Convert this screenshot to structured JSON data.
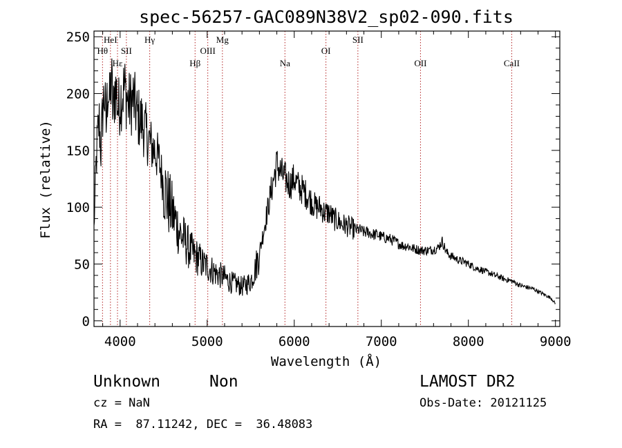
{
  "chart_data": {
    "type": "line",
    "title": "spec-56257-GAC089N38V2_sp02-090.fits",
    "xlabel": "Wavelength (Å)",
    "ylabel": "Flux (relative)",
    "xlim": [
      3700,
      9050
    ],
    "ylim": [
      -5,
      255
    ],
    "x_ticks": [
      4000,
      5000,
      6000,
      7000,
      8000,
      9000
    ],
    "y_ticks": [
      0,
      50,
      100,
      150,
      200,
      250
    ],
    "grid": false,
    "series": [
      {
        "x": [
          3700,
          3720,
          3740,
          3760,
          3780,
          3800,
          3820,
          3840,
          3860,
          3880,
          3900,
          3920,
          3940,
          3960,
          3980,
          4000,
          4050,
          4100,
          4150,
          4200,
          4250,
          4300,
          4350,
          4400,
          4450,
          4500,
          4550,
          4600,
          4650,
          4700,
          4750,
          4800,
          4850,
          4900,
          4950,
          5000,
          5050,
          5100,
          5150,
          5200,
          5250,
          5300,
          5350,
          5400,
          5450,
          5500,
          5550,
          5600,
          5650,
          5700,
          5750,
          5800,
          5850,
          5900,
          5950,
          6000,
          6050,
          6100,
          6150,
          6200,
          6250,
          6300,
          6350,
          6400,
          6450,
          6500,
          6550,
          6600,
          6650,
          6700,
          6750,
          6800,
          6850,
          6900,
          6950,
          7000,
          7050,
          7100,
          7150,
          7200,
          7250,
          7300,
          7350,
          7400,
          7450,
          7500,
          7550,
          7600,
          7650,
          7700,
          7750,
          7800,
          7850,
          7900,
          7950,
          8000,
          8050,
          8100,
          8150,
          8200,
          8250,
          8300,
          8350,
          8400,
          8450,
          8500,
          8550,
          8600,
          8650,
          8700,
          8750,
          8800,
          8850,
          8900,
          8950,
          9000
        ],
        "y": [
          80,
          130,
          160,
          175,
          150,
          185,
          200,
          170,
          210,
          190,
          215,
          180,
          205,
          200,
          185,
          195,
          205,
          190,
          195,
          180,
          175,
          165,
          155,
          150,
          140,
          120,
          105,
          95,
          85,
          75,
          70,
          62,
          58,
          55,
          50,
          48,
          45,
          42,
          40,
          38,
          35,
          33,
          32,
          30,
          32,
          35,
          45,
          60,
          80,
          100,
          120,
          138,
          130,
          125,
          120,
          125,
          118,
          115,
          110,
          105,
          100,
          100,
          95,
          95,
          90,
          88,
          85,
          84,
          82,
          80,
          80,
          78,
          78,
          76,
          76,
          74,
          73,
          72,
          70,
          68,
          66,
          66,
          64,
          63,
          62,
          62,
          62,
          63,
          64,
          70,
          60,
          57,
          55,
          53,
          52,
          50,
          48,
          46,
          45,
          43,
          42,
          40,
          39,
          37,
          36,
          35,
          33,
          31,
          30,
          29,
          28,
          26,
          24,
          22,
          20,
          15
        ]
      }
    ],
    "line_ids": [
      {
        "label": "HeI",
        "x": 3889,
        "row": 1
      },
      {
        "label": "Hγ",
        "x": 4340,
        "row": 1
      },
      {
        "label": "Mg",
        "x": 5175,
        "row": 1
      },
      {
        "label": "SII",
        "x": 6731,
        "row": 1
      },
      {
        "label": "Hθ",
        "x": 3798,
        "row": 2
      },
      {
        "label": "SII",
        "x": 4072,
        "row": 2
      },
      {
        "label": "OIII",
        "x": 5007,
        "row": 2
      },
      {
        "label": "OI",
        "x": 6364,
        "row": 2
      },
      {
        "label": "Hε",
        "x": 3970,
        "row": 3
      },
      {
        "label": "Hβ",
        "x": 4861,
        "row": 3
      },
      {
        "label": "Na",
        "x": 5893,
        "row": 3
      },
      {
        "label": "OII",
        "x": 7450,
        "row": 3
      },
      {
        "label": "CaII",
        "x": 8498,
        "row": 3
      }
    ]
  },
  "footer": {
    "class_label": "Unknown",
    "subclass_label": "Non",
    "survey": "LAMOST DR2",
    "cz_text": "cz = NaN",
    "obs_date": "Obs-Date: 20121125",
    "coords": "RA =  87.11242, DEC =  36.48083"
  },
  "colors": {
    "spectrum": "#000000",
    "line_markers": "#b22222",
    "axes": "#000000"
  }
}
